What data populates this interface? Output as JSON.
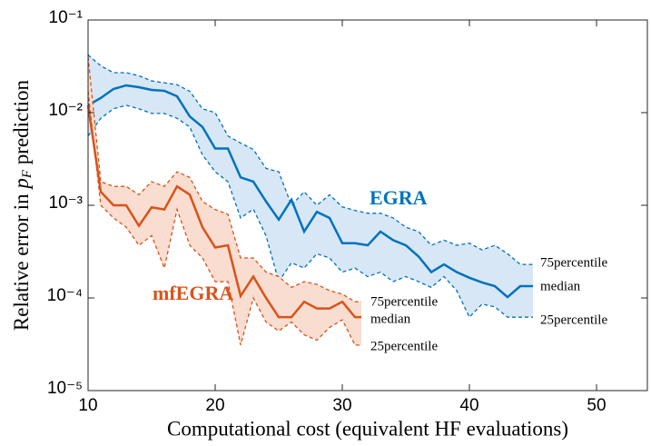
{
  "chart_data": {
    "type": "line",
    "xlabel": "Computational cost (equivalent HF evaluations)",
    "ylabel": {
      "before": "Relative error in ",
      "var": "p",
      "sub": "F",
      "after": " prediction"
    },
    "xlim": [
      10,
      54
    ],
    "xticks": [
      10,
      20,
      30,
      40,
      50
    ],
    "ylim": [
      1e-05,
      0.1
    ],
    "log_y": true,
    "yticks": [
      {
        "value": 1e-05,
        "label": "10⁻⁵"
      },
      {
        "value": 0.0001,
        "label": "10⁻⁴"
      },
      {
        "value": 0.001,
        "label": "10⁻³"
      },
      {
        "value": 0.01,
        "label": "10⁻²"
      },
      {
        "value": 0.1,
        "label": "10⁻¹"
      }
    ],
    "series": [
      {
        "name": "EGRA",
        "color": "#0072bd",
        "band_color": "#d7e7f6",
        "x": [
          10,
          11,
          12,
          13,
          14,
          15,
          16,
          17,
          18,
          19,
          20,
          21,
          22,
          23,
          24,
          25,
          26,
          27,
          28,
          29,
          30,
          31,
          32,
          33,
          34,
          35,
          36,
          37,
          38,
          39,
          40,
          41,
          42,
          43,
          44,
          45
        ],
        "median": [
          0.012,
          0.0144,
          0.018,
          0.0197,
          0.0188,
          0.0176,
          0.0172,
          0.015,
          0.0091,
          0.007,
          0.0041,
          0.0041,
          0.002,
          0.0018,
          0.0011,
          0.0007,
          0.00115,
          0.00052,
          0.00085,
          0.00073,
          0.00039,
          0.00039,
          0.00037,
          0.00052,
          0.00042,
          0.00037,
          0.00028,
          0.00019,
          0.00023,
          0.00019,
          0.000165,
          0.000147,
          0.000134,
          0.000102,
          0.000134,
          0.000134
        ],
        "p75": [
          0.042,
          0.032,
          0.027,
          0.027,
          0.025,
          0.022,
          0.021,
          0.02,
          0.017,
          0.011,
          0.01,
          0.0056,
          0.0047,
          0.004,
          0.0025,
          0.0023,
          0.001,
          0.0014,
          0.001,
          0.0013,
          0.00096,
          0.00088,
          0.00082,
          0.00082,
          0.00073,
          0.00058,
          0.00052,
          0.00037,
          0.00042,
          0.00037,
          0.00039,
          0.00033,
          0.00037,
          0.0003,
          0.00023,
          0.00023
        ],
        "p25": [
          0.0056,
          0.0087,
          0.011,
          0.012,
          0.011,
          0.0098,
          0.0098,
          0.0087,
          0.007,
          0.0035,
          0.0023,
          0.0018,
          0.00073,
          0.00091,
          0.00047,
          0.00015,
          0.00024,
          0.00021,
          0.0003,
          0.00027,
          0.00019,
          0.00021,
          0.00017,
          0.00019,
          0.00015,
          0.00017,
          0.00015,
          0.00013,
          0.00017,
          0.00012,
          6.2e-05,
          8.6e-05,
          8e-05,
          6.2e-05,
          6.2e-05,
          6.2e-05
        ],
        "band_labels": [
          "75percentile",
          "median",
          "25percentile"
        ]
      },
      {
        "name": "mfEGRA",
        "color": "#d95319",
        "band_color": "#f8ddd0",
        "x": [
          10,
          11,
          12,
          13,
          14,
          15,
          16,
          17,
          18,
          19,
          20,
          21,
          22,
          23,
          24,
          25,
          26,
          27,
          28,
          29,
          30,
          31,
          31.5
        ],
        "median": [
          0.012,
          0.0014,
          0.001,
          0.001,
          0.0006,
          0.00095,
          0.0009,
          0.0016,
          0.0013,
          0.00058,
          0.00035,
          0.00037,
          0.000105,
          0.00017,
          0.0001,
          6.2e-05,
          6.2e-05,
          9.1e-05,
          7.7e-05,
          7.7e-05,
          9.1e-05,
          6.2e-05,
          6.2e-05
        ],
        "p75": [
          0.04,
          0.0018,
          0.0016,
          0.0016,
          0.0013,
          0.0018,
          0.0016,
          0.0023,
          0.002,
          0.0011,
          0.0009,
          0.0008,
          0.00027,
          0.00027,
          0.00019,
          0.00017,
          0.00013,
          0.00015,
          0.00014,
          0.00012,
          0.00011,
          9.1e-05,
          9.1e-05
        ],
        "p25": [
          0.017,
          0.001,
          0.00073,
          0.00058,
          0.00037,
          0.00047,
          0.00021,
          0.0009,
          0.00037,
          0.00027,
          0.00015,
          0.00015,
          3.1e-05,
          0.0001,
          5.5e-05,
          4.4e-05,
          5.5e-05,
          4e-05,
          3.5e-05,
          4.8e-05,
          5.8e-05,
          3.1e-05,
          3.1e-05
        ],
        "band_labels": [
          "75percentile",
          "median",
          "25percentile"
        ]
      }
    ]
  }
}
